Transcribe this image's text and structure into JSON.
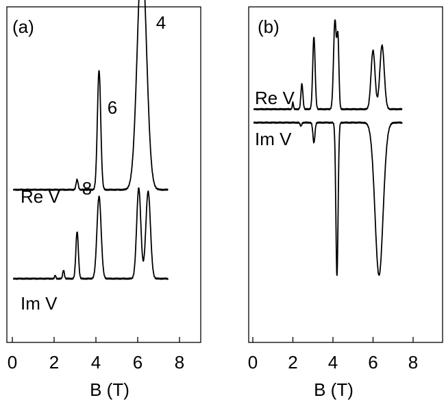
{
  "chart_data": [
    {
      "type": "line",
      "panel_label": "(a)",
      "xlabel": "B (T)",
      "ylabel": "",
      "xlim": [
        0,
        8
      ],
      "xticks": [
        0,
        2,
        4,
        6,
        8
      ],
      "tick_labels": [
        "0",
        "2",
        "4",
        "6",
        "8"
      ],
      "grid": false,
      "peak_labels": [
        {
          "text": "8",
          "x": 3.1
        },
        {
          "text": "6",
          "x": 4.15
        },
        {
          "text": "4",
          "x": 6.2
        }
      ],
      "series": [
        {
          "name": "Re V",
          "baseline": 0.545,
          "x_range": [
            0.05,
            7.45
          ],
          "peaks": [
            {
              "x": 3.1,
              "height": 0.03,
              "width": 0.05
            },
            {
              "x": 4.15,
              "height": 0.355,
              "width": 0.08
            },
            {
              "x": 6.2,
              "height": 0.705,
              "width": 0.22
            }
          ]
        },
        {
          "name": "Im V",
          "baseline": 0.81,
          "x_range": [
            0.05,
            7.45
          ],
          "peaks": [
            {
              "x": 2.05,
              "height": 0.01,
              "width": 0.03
            },
            {
              "x": 2.45,
              "height": 0.025,
              "width": 0.04
            },
            {
              "x": 3.1,
              "height": 0.14,
              "width": 0.06
            },
            {
              "x": 4.15,
              "height": 0.245,
              "width": 0.1
            },
            {
              "x": 6.05,
              "height": 0.27,
              "width": 0.1
            },
            {
              "x": 6.5,
              "height": 0.26,
              "width": 0.11
            }
          ]
        }
      ]
    },
    {
      "type": "line",
      "panel_label": "(b)",
      "xlabel": "B (T)",
      "ylabel": "",
      "xlim": [
        0,
        8
      ],
      "xticks": [
        0,
        2,
        4,
        6,
        8
      ],
      "tick_labels": [
        "0",
        "2",
        "4",
        "6",
        "8"
      ],
      "grid": false,
      "series": [
        {
          "name": "Re V",
          "baseline": 0.305,
          "x_range": [
            0.05,
            7.45
          ],
          "peaks": [
            {
              "x": 2.0,
              "height": 0.02,
              "width": 0.03
            },
            {
              "x": 2.45,
              "height": 0.075,
              "width": 0.05
            },
            {
              "x": 3.05,
              "height": 0.215,
              "width": 0.06
            },
            {
              "x": 4.1,
              "height": 0.265,
              "width": 0.07
            },
            {
              "x": 4.25,
              "height": 0.2,
              "width": 0.05
            },
            {
              "x": 6.0,
              "height": 0.175,
              "width": 0.1
            },
            {
              "x": 6.45,
              "height": 0.19,
              "width": 0.11
            }
          ]
        },
        {
          "name": "Im V",
          "baseline": 0.345,
          "x_range": [
            0.05,
            7.45
          ],
          "peaks": [
            {
              "x": 2.4,
              "height": -0.01,
              "width": 0.04
            },
            {
              "x": 3.05,
              "height": -0.06,
              "width": 0.05
            },
            {
              "x": 4.2,
              "height": -0.455,
              "width": 0.055
            },
            {
              "x": 6.3,
              "height": -0.455,
              "width": 0.2
            }
          ]
        }
      ]
    }
  ]
}
